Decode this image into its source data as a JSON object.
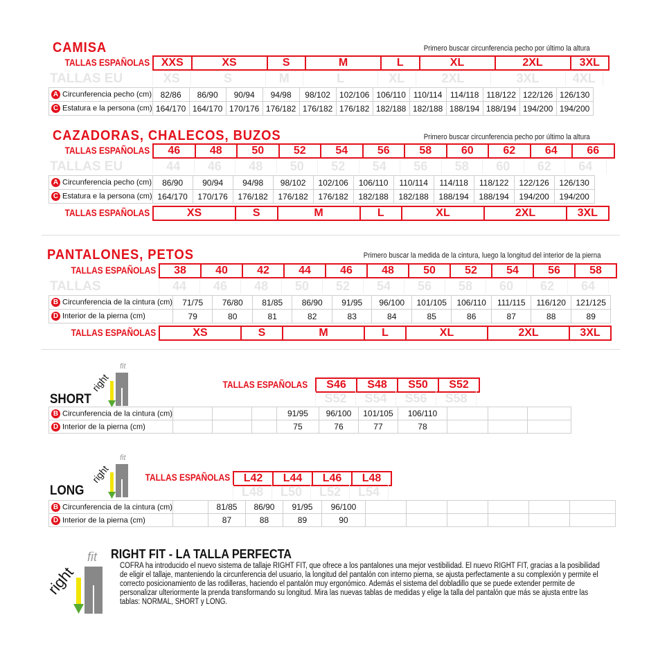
{
  "camisa": {
    "title": "CAMISA",
    "note": "Primero buscar circunferencia pecho por último la altura",
    "es_label": "TALLAS ESPAÑOLAS",
    "eu_label": "TALLAS EU",
    "es": [
      {
        "t": "XXS",
        "s": 1
      },
      {
        "t": "XS",
        "s": 2
      },
      {
        "t": "S",
        "s": 1
      },
      {
        "t": "M",
        "s": 2
      },
      {
        "t": "L",
        "s": 1
      },
      {
        "t": "XL",
        "s": 2
      },
      {
        "t": "2XL",
        "s": 2
      },
      {
        "t": "3XL",
        "s": 1
      }
    ],
    "eu": [
      {
        "t": "XS",
        "s": 1
      },
      {
        "t": "S",
        "s": 2
      },
      {
        "t": "M",
        "s": 1
      },
      {
        "t": "L",
        "s": 2
      },
      {
        "t": "XL",
        "s": 1
      },
      {
        "t": "2XL",
        "s": 2
      },
      {
        "t": "3XL",
        "s": 2
      },
      {
        "t": "4XL",
        "s": 1
      }
    ],
    "rows": [
      {
        "badge": "A",
        "label": "Circunferencia pecho (cm)",
        "values": [
          "82/86",
          "86/90",
          "90/94",
          "94/98",
          "98/102",
          "102/106",
          "106/110",
          "110/114",
          "114/118",
          "118/122",
          "122/126",
          "126/130"
        ]
      },
      {
        "badge": "C",
        "label": "Estatura e la persona (cm)",
        "values": [
          "164/170",
          "164/170",
          "170/176",
          "176/182",
          "176/182",
          "176/182",
          "182/188",
          "182/188",
          "188/194",
          "188/194",
          "194/200",
          "194/200"
        ]
      }
    ]
  },
  "cazadoras": {
    "title": "CAZADORAS, CHALECOS, BUZOS",
    "note": "Primero buscar circunferencia pecho por último la altura",
    "es_label": "TALLAS ESPAÑOLAS",
    "eu_label": "TALLAS EU",
    "bottom_label": "TALLAS ESPAÑOLAS",
    "es": [
      {
        "t": "46",
        "s": 1
      },
      {
        "t": "48",
        "s": 1
      },
      {
        "t": "50",
        "s": 1
      },
      {
        "t": "52",
        "s": 1
      },
      {
        "t": "54",
        "s": 1
      },
      {
        "t": "56",
        "s": 1
      },
      {
        "t": "58",
        "s": 1
      },
      {
        "t": "60",
        "s": 1
      },
      {
        "t": "62",
        "s": 1
      },
      {
        "t": "64",
        "s": 1
      },
      {
        "t": "66",
        "s": 1
      }
    ],
    "eu": [
      {
        "t": "44",
        "s": 1
      },
      {
        "t": "46",
        "s": 1
      },
      {
        "t": "48",
        "s": 1
      },
      {
        "t": "50",
        "s": 1
      },
      {
        "t": "52",
        "s": 1
      },
      {
        "t": "54",
        "s": 1
      },
      {
        "t": "56",
        "s": 1
      },
      {
        "t": "58",
        "s": 1
      },
      {
        "t": "60",
        "s": 1
      },
      {
        "t": "62",
        "s": 1
      },
      {
        "t": "64",
        "s": 1
      }
    ],
    "rows": [
      {
        "badge": "A",
        "label": "Circunferencia pecho (cm)",
        "values": [
          "86/90",
          "90/94",
          "94/98",
          "98/102",
          "102/106",
          "106/110",
          "110/114",
          "114/118",
          "118/122",
          "122/126",
          "126/130"
        ]
      },
      {
        "badge": "C",
        "label": "Estatura e la persona (cm)",
        "values": [
          "164/170",
          "170/176",
          "176/182",
          "176/182",
          "176/182",
          "182/188",
          "182/188",
          "188/194",
          "188/194",
          "194/200",
          "194/200"
        ]
      }
    ],
    "bottom": [
      {
        "t": "XS",
        "s": 2
      },
      {
        "t": "S",
        "s": 1
      },
      {
        "t": "M",
        "s": 2
      },
      {
        "t": "L",
        "s": 1
      },
      {
        "t": "XL",
        "s": 2
      },
      {
        "t": "2XL",
        "s": 2
      },
      {
        "t": "3XL",
        "s": 1
      }
    ]
  },
  "pantalones": {
    "title": "PANTALONES, PETOS",
    "note": "Primero buscar la medida de la cintura, luego la longitud del interior de la pierna",
    "es_label": "TALLAS ESPAÑOLAS",
    "eu_label": "TALLAS",
    "bottom_label": "TALLAS ESPAÑOLAS",
    "es": [
      {
        "t": "38",
        "s": 1
      },
      {
        "t": "40",
        "s": 1
      },
      {
        "t": "42",
        "s": 1
      },
      {
        "t": "44",
        "s": 1
      },
      {
        "t": "46",
        "s": 1
      },
      {
        "t": "48",
        "s": 1
      },
      {
        "t": "50",
        "s": 1
      },
      {
        "t": "52",
        "s": 1
      },
      {
        "t": "54",
        "s": 1
      },
      {
        "t": "56",
        "s": 1
      },
      {
        "t": "58",
        "s": 1
      }
    ],
    "eu": [
      {
        "t": "44",
        "s": 1
      },
      {
        "t": "46",
        "s": 1
      },
      {
        "t": "48",
        "s": 1
      },
      {
        "t": "50",
        "s": 1
      },
      {
        "t": "52",
        "s": 1
      },
      {
        "t": "54",
        "s": 1
      },
      {
        "t": "56",
        "s": 1
      },
      {
        "t": "58",
        "s": 1
      },
      {
        "t": "60",
        "s": 1
      },
      {
        "t": "62",
        "s": 1
      },
      {
        "t": "64",
        "s": 1
      }
    ],
    "rows": [
      {
        "badge": "B",
        "label": "Circunferencia de la cintura (cm)",
        "values": [
          "71/75",
          "76/80",
          "81/85",
          "86/90",
          "91/95",
          "96/100",
          "101/105",
          "106/110",
          "111/115",
          "116/120",
          "121/125"
        ]
      },
      {
        "badge": "D",
        "label": "Interior de la pierna (cm)",
        "values": [
          "79",
          "80",
          "81",
          "82",
          "83",
          "84",
          "85",
          "86",
          "87",
          "88",
          "89"
        ]
      }
    ],
    "bottom": [
      {
        "t": "XS",
        "s": 2
      },
      {
        "t": "S",
        "s": 1
      },
      {
        "t": "M",
        "s": 2
      },
      {
        "t": "L",
        "s": 1
      },
      {
        "t": "XL",
        "s": 2
      },
      {
        "t": "2XL",
        "s": 2
      },
      {
        "t": "3XL",
        "s": 1
      }
    ]
  },
  "short": {
    "title": "SHORT",
    "logo": "rightfit",
    "es_label": "TALLAS ESPAÑOLAS",
    "es": [
      "S46",
      "S48",
      "S50",
      "S52"
    ],
    "eu": [
      "S52",
      "S54",
      "S56",
      "S58"
    ],
    "rows": [
      {
        "badge": "B",
        "label": "Circunferencia de la cintura (cm)",
        "values": [
          "",
          "",
          "",
          "91/95",
          "96/100",
          "101/105",
          "106/110",
          "",
          "",
          ""
        ]
      },
      {
        "badge": "D",
        "label": "Interior de la pierna (cm)",
        "values": [
          "",
          "",
          "",
          "75",
          "76",
          "77",
          "78",
          "",
          "",
          ""
        ]
      }
    ]
  },
  "long": {
    "title": "LONG",
    "logo": "rightfit",
    "es_label": "TALLAS ESPAÑOLAS",
    "es": [
      "L42",
      "L44",
      "L46",
      "L48"
    ],
    "eu": [
      "L48",
      "L50",
      "L52",
      "L54"
    ],
    "rows": [
      {
        "badge": "B",
        "label": "Circunferencia de la cintura (cm)",
        "values": [
          "",
          "81/85",
          "86/90",
          "91/95",
          "96/100",
          "",
          "",
          "",
          "",
          "",
          ""
        ]
      },
      {
        "badge": "D",
        "label": "Interior de la pierna (cm)",
        "values": [
          "",
          "87",
          "88",
          "89",
          "90",
          "",
          "",
          "",
          "",
          "",
          ""
        ]
      }
    ]
  },
  "rightfit": {
    "logo": "rightfit",
    "title": "RIGHT FIT - LA TALLA PERFECTA",
    "text": "COFRA ha introducido el nuevo sistema de tallaje RIGHT FIT, que ofrece a los pantalones una mejor vestibilidad. El nuevo RIGHT FIT, gracias a la posibilidad de eligir el tallaje, manteniendo la circunferencia del usuario, la longitud del pantalón con interno pierna, se ajusta perfectamente a su complexión y permite el correcto posicionamiento de las rodilleras, haciendo el pantalón muy ergonómico. Además el sistema del dobladillo que se puede extender permite de personalizar ulteriormente la prenda transformando su longitud. Mira las nuevas tablas de medidas y elige la talla del pantalón que más se ajusta entre las tablas: NORMAL, SHORT y LONG."
  },
  "colors": {
    "accent": "#e3101b",
    "faint": "#e6e6e6",
    "grid": "#cfcfcf"
  }
}
